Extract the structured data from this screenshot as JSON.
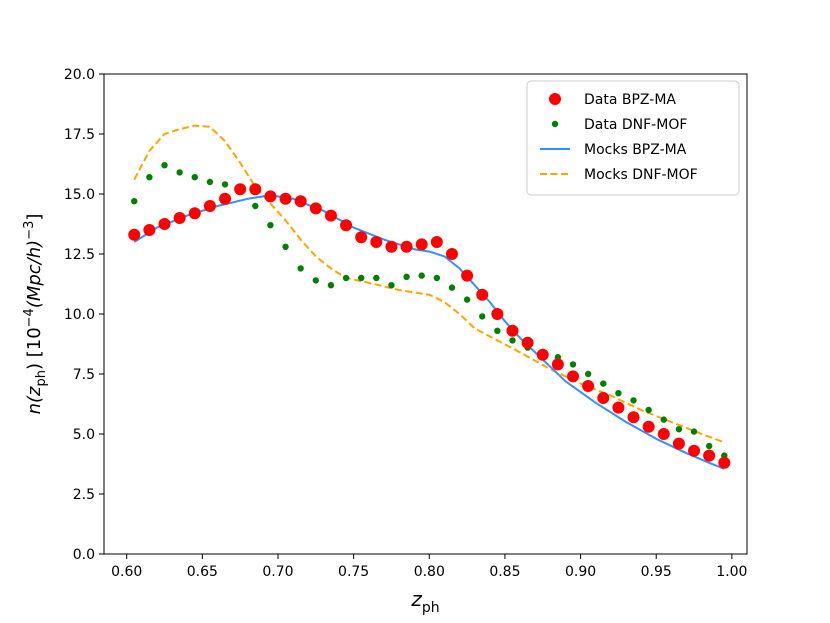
{
  "chart_data": {
    "type": "scatter",
    "xlabel_main": "z",
    "xlabel_sub": "ph",
    "ylabel_prefix": "n(z",
    "ylabel_sub": "ph",
    "ylabel_suffix": ")    [10",
    "ylabel_exp1": "−4",
    "ylabel_unit": "(Mpc/h)",
    "ylabel_exp2": "−3",
    "ylabel_close": "]",
    "xlim": [
      0.585,
      1.01
    ],
    "ylim": [
      0.0,
      20.0
    ],
    "x_ticks": [
      0.6,
      0.65,
      0.7,
      0.75,
      0.8,
      0.85,
      0.9,
      0.95,
      1.0
    ],
    "x_tick_labels": [
      "0.60",
      "0.65",
      "0.70",
      "0.75",
      "0.80",
      "0.85",
      "0.90",
      "0.95",
      "1.00"
    ],
    "y_ticks": [
      0.0,
      2.5,
      5.0,
      7.5,
      10.0,
      12.5,
      15.0,
      17.5,
      20.0
    ],
    "y_tick_labels": [
      "0.0",
      "2.5",
      "5.0",
      "7.5",
      "10.0",
      "12.5",
      "15.0",
      "17.5",
      "20.0"
    ],
    "legend_position": "top-right",
    "series": [
      {
        "name": "Data BPZ-MA",
        "kind": "points",
        "color": "#ff0000",
        "marker": "large-dot",
        "x": [
          0.605,
          0.615,
          0.625,
          0.635,
          0.645,
          0.655,
          0.665,
          0.675,
          0.685,
          0.695,
          0.705,
          0.715,
          0.725,
          0.735,
          0.745,
          0.755,
          0.765,
          0.775,
          0.785,
          0.795,
          0.805,
          0.815,
          0.825,
          0.835,
          0.845,
          0.855,
          0.865,
          0.875,
          0.885,
          0.895,
          0.905,
          0.915,
          0.925,
          0.935,
          0.945,
          0.955,
          0.965,
          0.975,
          0.985,
          0.995
        ],
        "y": [
          13.3,
          13.5,
          13.75,
          14.0,
          14.2,
          14.5,
          14.8,
          15.2,
          15.2,
          14.9,
          14.8,
          14.7,
          14.4,
          14.1,
          13.7,
          13.2,
          13.0,
          12.8,
          12.8,
          12.9,
          13.0,
          12.5,
          11.6,
          10.8,
          10.0,
          9.3,
          8.8,
          8.3,
          7.9,
          7.4,
          7.0,
          6.5,
          6.1,
          5.7,
          5.3,
          5.0,
          4.6,
          4.3,
          4.1,
          3.8
        ]
      },
      {
        "name": "Data DNF-MOF",
        "kind": "points",
        "color": "#008000",
        "marker": "small-dot",
        "x": [
          0.605,
          0.615,
          0.625,
          0.635,
          0.645,
          0.655,
          0.665,
          0.675,
          0.685,
          0.695,
          0.705,
          0.715,
          0.725,
          0.735,
          0.745,
          0.755,
          0.765,
          0.775,
          0.785,
          0.795,
          0.805,
          0.815,
          0.825,
          0.835,
          0.845,
          0.855,
          0.865,
          0.875,
          0.885,
          0.895,
          0.905,
          0.915,
          0.925,
          0.935,
          0.945,
          0.955,
          0.965,
          0.975,
          0.985,
          0.995
        ],
        "y": [
          14.7,
          15.7,
          16.2,
          15.9,
          15.7,
          15.5,
          15.4,
          15.1,
          14.5,
          13.7,
          12.8,
          11.9,
          11.4,
          11.2,
          11.5,
          11.5,
          11.5,
          11.2,
          11.55,
          11.6,
          11.5,
          11.1,
          10.6,
          9.9,
          9.3,
          8.9,
          8.6,
          8.4,
          8.2,
          7.9,
          7.5,
          7.1,
          6.7,
          6.4,
          6.0,
          5.6,
          5.2,
          5.1,
          4.5,
          4.1
        ]
      },
      {
        "name": "Mocks BPZ-MA",
        "kind": "line",
        "color": "#3391ff",
        "dash": "solid",
        "x": [
          0.605,
          0.62,
          0.64,
          0.66,
          0.68,
          0.695,
          0.71,
          0.73,
          0.75,
          0.77,
          0.79,
          0.8,
          0.81,
          0.82,
          0.83,
          0.84,
          0.85,
          0.86,
          0.875,
          0.89,
          0.91,
          0.93,
          0.95,
          0.97,
          0.985,
          0.995
        ],
        "y": [
          13.0,
          13.6,
          14.1,
          14.5,
          14.8,
          14.95,
          14.8,
          14.3,
          13.6,
          13.1,
          12.7,
          12.6,
          12.4,
          11.9,
          11.2,
          10.5,
          9.7,
          9.0,
          8.1,
          7.2,
          6.3,
          5.5,
          4.8,
          4.2,
          3.8,
          3.55
        ]
      },
      {
        "name": "Mocks DNF-MOF",
        "kind": "line",
        "color": "#ffa500",
        "dash": "dashed",
        "x": [
          0.605,
          0.615,
          0.625,
          0.635,
          0.645,
          0.655,
          0.665,
          0.675,
          0.685,
          0.695,
          0.705,
          0.715,
          0.725,
          0.735,
          0.745,
          0.76,
          0.78,
          0.8,
          0.81,
          0.82,
          0.83,
          0.845,
          0.86,
          0.88,
          0.9,
          0.92,
          0.94,
          0.96,
          0.98,
          0.995
        ],
        "y": [
          15.6,
          16.8,
          17.5,
          17.7,
          17.85,
          17.8,
          17.2,
          16.3,
          15.3,
          14.6,
          13.9,
          13.1,
          12.4,
          11.9,
          11.5,
          11.3,
          11.0,
          10.8,
          10.5,
          10.0,
          9.4,
          8.9,
          8.4,
          7.7,
          7.1,
          6.6,
          6.0,
          5.5,
          5.0,
          4.65
        ]
      }
    ]
  }
}
